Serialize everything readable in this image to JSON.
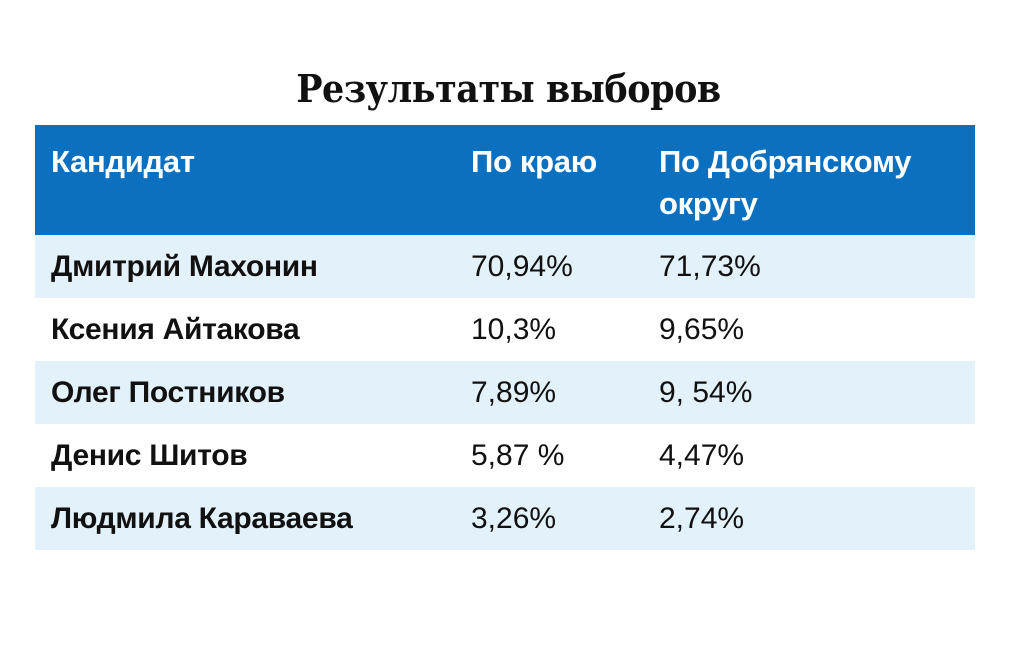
{
  "title": "Результаты выборов",
  "chart_data": {
    "type": "table",
    "title": "Результаты выборов",
    "columns": [
      "Кандидат",
      "По краю",
      "По Добрянскому округу"
    ],
    "rows": [
      {
        "candidate": "Дмитрий Махонин",
        "krai": "70,94%",
        "okrug": "71,73%"
      },
      {
        "candidate": "Ксения Айтакова",
        "krai": "10,3%",
        "okrug": "9,65%"
      },
      {
        "candidate": "Олег Постников",
        "krai": "7,89%",
        "okrug": "9, 54%"
      },
      {
        "candidate": "Денис Шитов",
        "krai": "5,87 %",
        "okrug": "4,47%"
      },
      {
        "candidate": "Людмила Караваева",
        "krai": "3,26%",
        "okrug": "2,74%"
      }
    ]
  },
  "colors": {
    "header_bg": "#0a70bf",
    "header_text": "#ffffff",
    "stripe_bg": "#e3f1fb",
    "body_text": "#111111"
  }
}
